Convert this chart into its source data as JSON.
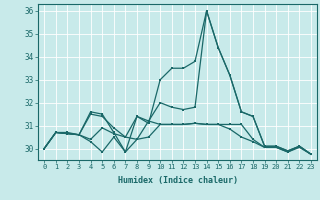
{
  "title": "",
  "xlabel": "Humidex (Indice chaleur)",
  "bg_color": "#c8eaea",
  "line_color": "#1a6868",
  "grid_color": "#b0d8d8",
  "xlim": [
    -0.5,
    23.5
  ],
  "ylim": [
    29.5,
    36.3
  ],
  "xticks": [
    0,
    1,
    2,
    3,
    4,
    5,
    6,
    7,
    8,
    9,
    10,
    11,
    12,
    13,
    14,
    15,
    16,
    17,
    18,
    19,
    20,
    21,
    22,
    23
  ],
  "yticks": [
    30,
    31,
    32,
    33,
    34,
    35,
    36
  ],
  "lines": [
    [
      30.0,
      30.7,
      30.7,
      30.6,
      31.6,
      31.5,
      30.7,
      29.85,
      31.4,
      31.1,
      33.0,
      33.5,
      33.5,
      33.8,
      36.0,
      34.4,
      33.2,
      31.6,
      31.4,
      30.1,
      30.1,
      29.9,
      30.1,
      29.75
    ],
    [
      30.0,
      30.7,
      30.65,
      30.6,
      30.3,
      29.85,
      30.5,
      29.85,
      30.4,
      30.5,
      31.05,
      31.05,
      31.05,
      31.1,
      31.05,
      31.05,
      31.05,
      31.05,
      30.4,
      30.05,
      30.05,
      29.85,
      30.1,
      29.75
    ],
    [
      30.0,
      30.7,
      30.65,
      30.6,
      30.4,
      30.9,
      30.65,
      30.5,
      30.4,
      31.2,
      31.05,
      31.05,
      31.05,
      31.1,
      31.05,
      31.05,
      30.85,
      30.5,
      30.3,
      30.05,
      30.05,
      29.85,
      30.05,
      29.75
    ],
    [
      30.0,
      30.7,
      30.65,
      30.6,
      31.5,
      31.4,
      30.9,
      30.5,
      31.4,
      31.2,
      32.0,
      31.8,
      31.7,
      31.8,
      36.0,
      34.4,
      33.2,
      31.6,
      31.4,
      30.1,
      30.1,
      29.9,
      30.1,
      29.75
    ]
  ]
}
